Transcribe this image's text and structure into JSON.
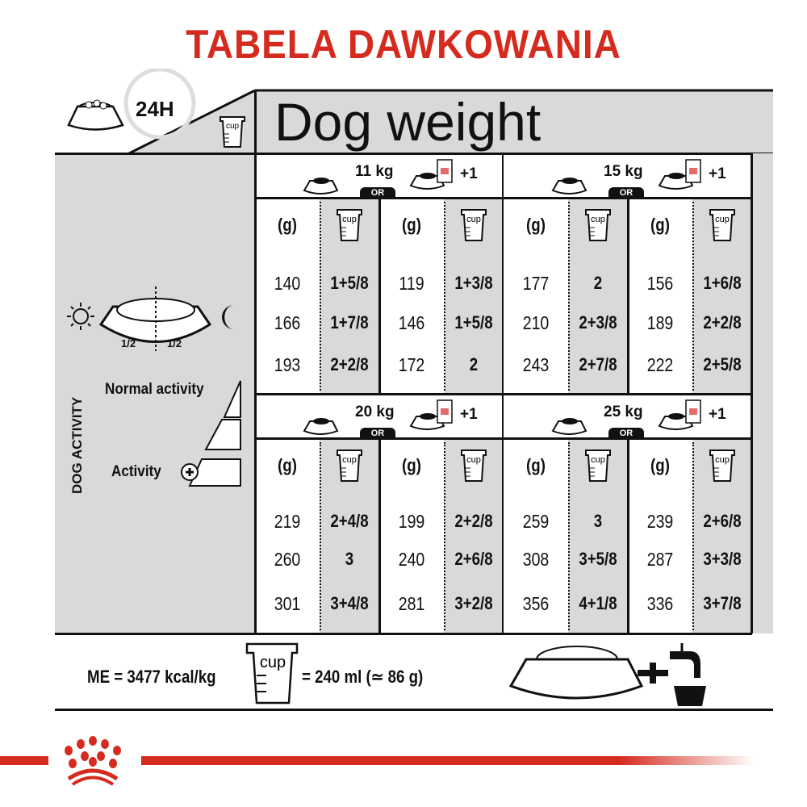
{
  "title": "TABELA DAWKOWANIA",
  "header": {
    "duration": "24H",
    "dog_weight": "Dog weight",
    "cup_label": "cup"
  },
  "left_panel": {
    "half_left": "1/2",
    "half_right": "1/2",
    "dog_activity": "DOG ACTIVITY",
    "normal_activity": "Normal activity",
    "activity": "Activity"
  },
  "table": {
    "unit_grams": "(g)",
    "or_label": "OR",
    "plus_label": "+1",
    "blocks": [
      {
        "weight": "11 kg",
        "dry": [
          [
            "140",
            "1+5/8"
          ],
          [
            "166",
            "1+7/8"
          ],
          [
            "193",
            "2+2/8"
          ]
        ],
        "mixed": [
          [
            "119",
            "1+3/8"
          ],
          [
            "146",
            "1+5/8"
          ],
          [
            "172",
            "2"
          ]
        ]
      },
      {
        "weight": "15 kg",
        "dry": [
          [
            "177",
            "2"
          ],
          [
            "210",
            "2+3/8"
          ],
          [
            "243",
            "2+7/8"
          ]
        ],
        "mixed": [
          [
            "156",
            "1+6/8"
          ],
          [
            "189",
            "2+2/8"
          ],
          [
            "222",
            "2+5/8"
          ]
        ]
      },
      {
        "weight": "20 kg",
        "dry": [
          [
            "219",
            "2+4/8"
          ],
          [
            "260",
            "3"
          ],
          [
            "301",
            "3+4/8"
          ]
        ],
        "mixed": [
          [
            "199",
            "2+2/8"
          ],
          [
            "240",
            "2+6/8"
          ],
          [
            "281",
            "3+2/8"
          ]
        ]
      },
      {
        "weight": "25 kg",
        "dry": [
          [
            "259",
            "3"
          ],
          [
            "308",
            "3+5/8"
          ],
          [
            "356",
            "4+1/8"
          ]
        ],
        "mixed": [
          [
            "239",
            "2+6/8"
          ],
          [
            "287",
            "3+3/8"
          ],
          [
            "336",
            "3+7/8"
          ]
        ]
      }
    ]
  },
  "footer": {
    "energy": "ME = 3477 kcal/kg",
    "cup_equiv": "= 240 ml (≃ 86 g)",
    "cup_label": "cup"
  },
  "colors": {
    "brand_red": "#d52b1e",
    "panel_gray": "#d9d9d9"
  }
}
